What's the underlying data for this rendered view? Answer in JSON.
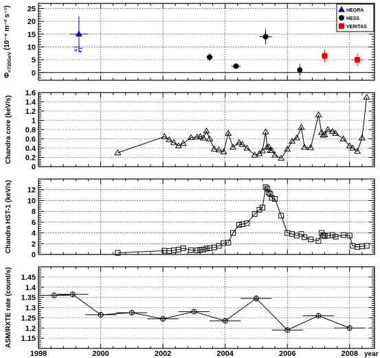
{
  "x_range": [
    1998,
    2008.8
  ],
  "x_ticks": [
    1998,
    2000,
    2002,
    2004,
    2006,
    2008
  ],
  "x_tick_labels": [
    "1998",
    "2000",
    "2002",
    "2004",
    "2006",
    "2008"
  ],
  "x_axis_label": "year",
  "colors": {
    "hegra": "#0000cc",
    "hess": "#000000",
    "veritas": "#ee0000",
    "frame": "#000000",
    "grid": "#000000"
  },
  "legend": {
    "items": [
      "HEGRA",
      "HESS",
      "VERITAS"
    ]
  },
  "chart_data": [
    {
      "type": "scatter",
      "ylabel": "Φ>730GeV (10⁻⁹ m⁻² s⁻¹)",
      "ylabel_main": "Φ",
      "ylabel_sub": ">730GeV",
      "ylabel_rest": "(10⁻⁹ m⁻² s⁻¹)",
      "ylim": [
        -3,
        27
      ],
      "y_ticks": [
        0,
        5,
        10,
        15,
        20,
        25
      ],
      "y_tick_labels": [
        "0",
        "5",
        "10",
        "15",
        "20",
        "25"
      ],
      "zero_line": true,
      "legend_position": "top-right",
      "series": [
        {
          "name": "HEGRA",
          "marker": "triangle",
          "color": "#0000cc",
          "points": [
            {
              "x": 1999.3,
              "y": 15.0,
              "yerr": 7.0,
              "xerr": 0.3
            }
          ],
          "upper_limits": [
            {
              "x": 1999.2,
              "y": 10.0
            },
            {
              "x": 1999.35,
              "y": 9.5
            }
          ]
        },
        {
          "name": "HESS",
          "marker": "circle",
          "color": "#000000",
          "points": [
            {
              "x": 2003.5,
              "y": 6.0,
              "yerr": 1.6,
              "xerr": 0.1
            },
            {
              "x": 2004.35,
              "y": 2.5,
              "yerr": 0.9,
              "xerr": 0.15
            },
            {
              "x": 2005.3,
              "y": 14.0,
              "yerr": 3.0,
              "xerr": 0.2
            },
            {
              "x": 2006.4,
              "y": 1.0,
              "yerr": 2.2,
              "xerr": 0.05
            }
          ]
        },
        {
          "name": "VERITAS",
          "marker": "square",
          "color": "#ee0000",
          "points": [
            {
              "x": 2007.2,
              "y": 6.5,
              "yerr": 2.5,
              "xerr": 0.1
            },
            {
              "x": 2008.25,
              "y": 5.0,
              "yerr": 2.5,
              "xerr": 0.2
            }
          ]
        }
      ]
    },
    {
      "type": "line",
      "ylabel": "Chandra core (keV/s)",
      "ylim": [
        0,
        1.6
      ],
      "y_ticks": [
        0,
        0.2,
        0.4,
        0.6,
        0.8,
        1,
        1.2,
        1.4,
        1.6
      ],
      "y_tick_labels": [
        "0",
        "0.2",
        "0.4",
        "0.6",
        "0.8",
        "1",
        "1.2",
        "1.4",
        "1.6"
      ],
      "marker": "triangle-open",
      "x": [
        2000.55,
        2002.05,
        2002.2,
        2002.35,
        2002.5,
        2002.65,
        2002.9,
        2003.1,
        2003.2,
        2003.3,
        2003.4,
        2003.5,
        2003.65,
        2003.8,
        2003.95,
        2004.1,
        2004.25,
        2004.45,
        2004.55,
        2004.7,
        2004.95,
        2005.1,
        2005.2,
        2005.3,
        2005.35,
        2005.4,
        2005.45,
        2005.5,
        2005.6,
        2005.8,
        2006.0,
        2006.15,
        2006.3,
        2006.45,
        2006.55,
        2006.75,
        2007.0,
        2007.1,
        2007.15,
        2007.2,
        2007.3,
        2007.45,
        2007.55,
        2007.8,
        2008.0,
        2008.1,
        2008.25,
        2008.4,
        2008.55
      ],
      "values": [
        0.3,
        0.65,
        0.58,
        0.52,
        0.45,
        0.5,
        0.63,
        0.64,
        0.65,
        0.62,
        0.77,
        0.6,
        0.38,
        0.36,
        0.32,
        0.72,
        0.42,
        0.52,
        0.48,
        0.4,
        0.25,
        0.28,
        0.34,
        0.75,
        0.42,
        0.43,
        0.35,
        0.35,
        0.25,
        0.18,
        0.38,
        0.55,
        0.62,
        0.85,
        0.42,
        0.41,
        1.12,
        0.74,
        0.68,
        0.69,
        0.8,
        0.76,
        0.72,
        0.6,
        0.45,
        0.4,
        0.33,
        0.62,
        1.5
      ]
    },
    {
      "type": "line",
      "ylabel": "Chandra HST-1 (keV/s)",
      "ylim": [
        0,
        14
      ],
      "y_ticks": [
        0,
        2,
        4,
        6,
        8,
        10,
        12
      ],
      "y_tick_labels": [
        "0",
        "2",
        "4",
        "6",
        "8",
        "10",
        "12"
      ],
      "marker": "square-open",
      "x": [
        2000.55,
        2002.05,
        2002.2,
        2002.35,
        2002.5,
        2002.65,
        2002.9,
        2003.1,
        2003.2,
        2003.3,
        2003.4,
        2003.5,
        2003.65,
        2003.8,
        2003.95,
        2004.1,
        2004.25,
        2004.45,
        2004.55,
        2004.7,
        2004.95,
        2005.1,
        2005.2,
        2005.3,
        2005.35,
        2005.4,
        2005.45,
        2005.5,
        2005.6,
        2005.8,
        2006.0,
        2006.15,
        2006.3,
        2006.45,
        2006.55,
        2006.75,
        2007.0,
        2007.1,
        2007.15,
        2007.2,
        2007.3,
        2007.45,
        2007.55,
        2007.8,
        2008.0,
        2008.1,
        2008.25,
        2008.4,
        2008.55
      ],
      "values": [
        0.3,
        0.7,
        0.65,
        0.75,
        0.9,
        1.15,
        0.8,
        0.75,
        0.85,
        0.9,
        1.1,
        1.15,
        1.3,
        1.6,
        2.1,
        2.2,
        4.0,
        5.5,
        5.6,
        5.8,
        7.5,
        8.3,
        8.7,
        12.5,
        12.2,
        11.5,
        11.2,
        10.5,
        10.3,
        7.2,
        4.0,
        3.8,
        3.5,
        3.8,
        3.2,
        2.8,
        2.5,
        4.0,
        3.6,
        3.4,
        3.5,
        3.6,
        3.3,
        3.6,
        3.5,
        1.6,
        1.4,
        1.5,
        1.6
      ]
    },
    {
      "type": "line",
      "ylabel": "ASM/RXTE rate (count/s)",
      "ylim": [
        1.1,
        1.5
      ],
      "y_ticks": [
        1.15,
        1.2,
        1.25,
        1.3,
        1.35,
        1.4,
        1.45
      ],
      "y_tick_labels": [
        "1.15",
        "1.2",
        "1.25",
        "1.3",
        "1.35",
        "1.4",
        "1.45"
      ],
      "marker": "circle-open",
      "points": [
        {
          "x": 1998.5,
          "y": 1.36,
          "xerr": 0.5,
          "yerr": 0.01
        },
        {
          "x": 1999.1,
          "y": 1.365,
          "xerr": 0.5,
          "yerr": 0.01
        },
        {
          "x": 2000.0,
          "y": 1.265,
          "xerr": 0.5,
          "yerr": 0.01
        },
        {
          "x": 2001.0,
          "y": 1.275,
          "xerr": 0.5,
          "yerr": 0.012
        },
        {
          "x": 2002.0,
          "y": 1.245,
          "xerr": 0.5,
          "yerr": 0.01
        },
        {
          "x": 2003.0,
          "y": 1.28,
          "xerr": 0.5,
          "yerr": 0.01
        },
        {
          "x": 2004.0,
          "y": 1.235,
          "xerr": 0.5,
          "yerr": 0.012
        },
        {
          "x": 2005.0,
          "y": 1.345,
          "xerr": 0.5,
          "yerr": 0.015
        },
        {
          "x": 2006.0,
          "y": 1.19,
          "xerr": 0.5,
          "yerr": 0.012
        },
        {
          "x": 2007.0,
          "y": 1.26,
          "xerr": 0.5,
          "yerr": 0.012
        },
        {
          "x": 2008.0,
          "y": 1.2,
          "xerr": 0.5,
          "yerr": 0.012
        }
      ]
    }
  ]
}
